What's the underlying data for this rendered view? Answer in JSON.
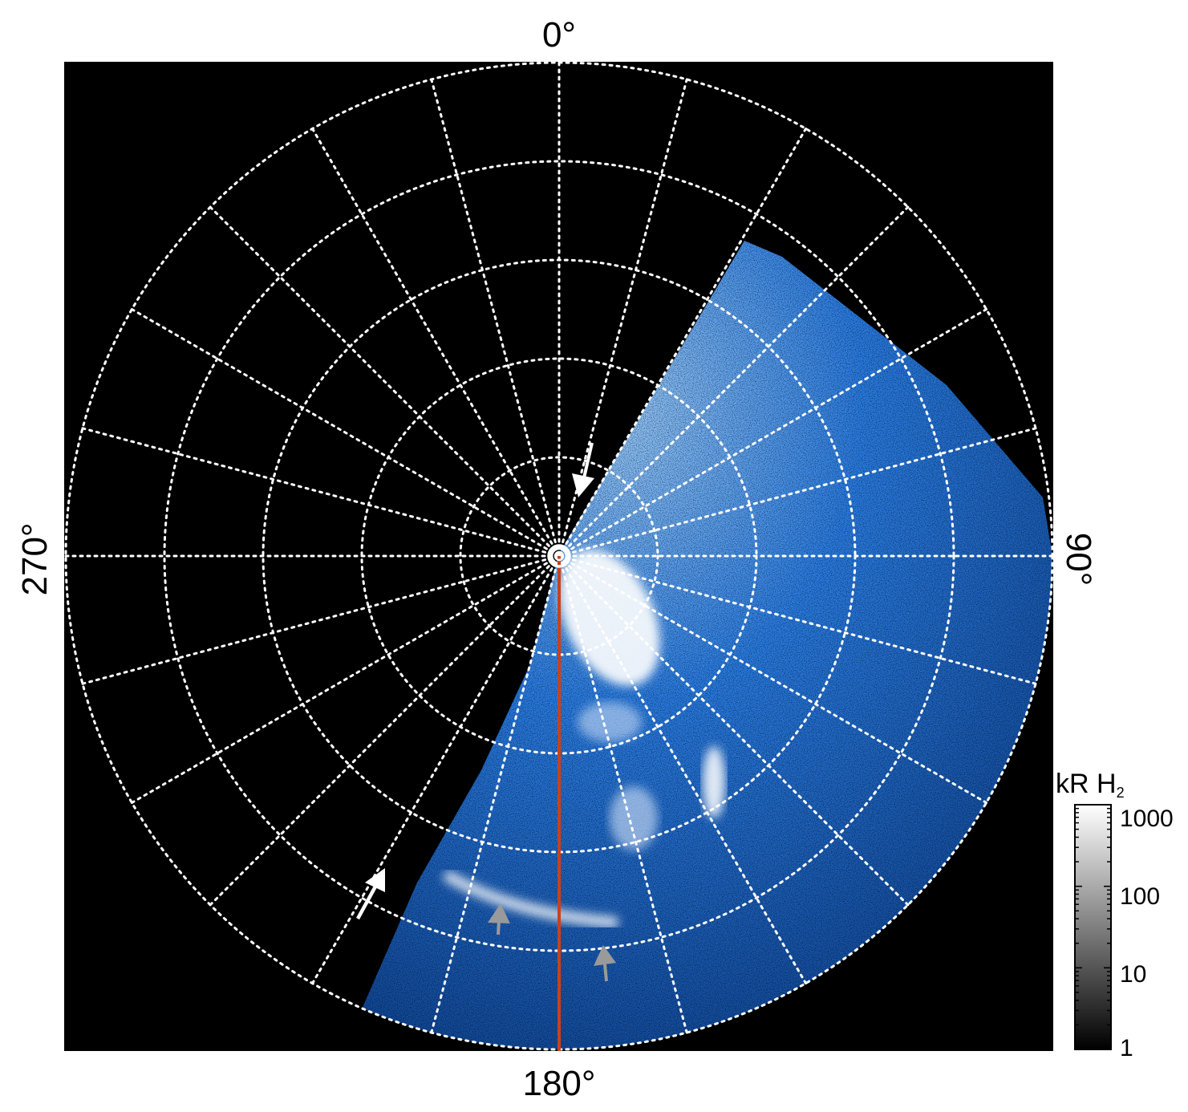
{
  "figure": {
    "labels": {
      "top": "0°",
      "bottom": "180°",
      "left": "270°",
      "right": "90°"
    },
    "colorbar": {
      "title": "kR H",
      "title_sub": "2",
      "ticks": [
        "1000",
        "100",
        "10",
        "1"
      ],
      "scale": "log"
    },
    "grid": {
      "style": "dotted",
      "color": "#ffffff",
      "meridian_count": 24,
      "ring_count": 5
    },
    "colors": {
      "background": "#000000",
      "emission": "#1e73e6",
      "emission_bright": "#ffffff",
      "meridian_line": "#c8421c",
      "arrow_white": "#ffffff",
      "arrow_grey": "#9a9a9a"
    },
    "arrows": [
      {
        "name": "arrow-white-center",
        "color": "white"
      },
      {
        "name": "arrow-white-lower-left",
        "color": "white"
      },
      {
        "name": "arrow-grey-left",
        "color": "grey"
      },
      {
        "name": "arrow-grey-right",
        "color": "grey"
      }
    ]
  }
}
